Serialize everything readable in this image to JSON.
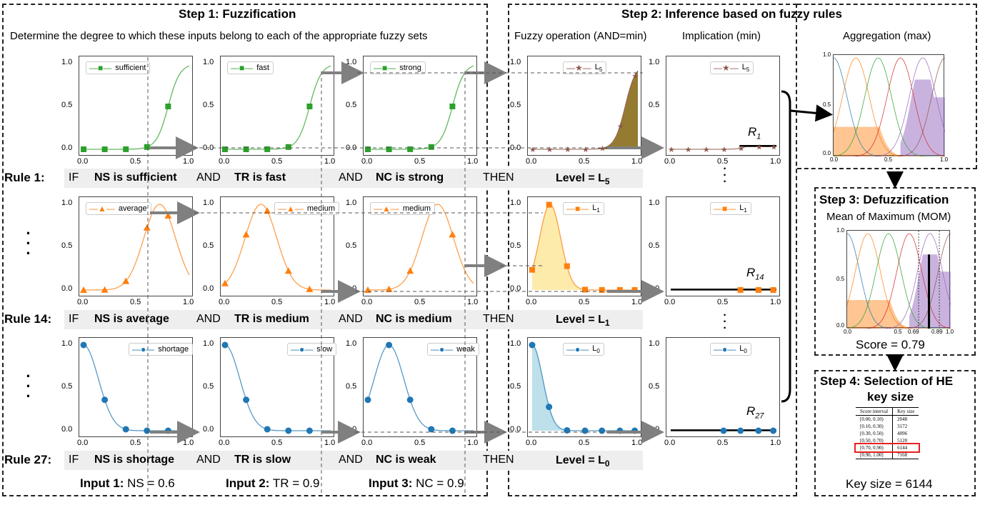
{
  "step1": {
    "title": "Step 1: Fuzzification",
    "subtitle": "Determine the degree to which these inputs belong to each of the appropriate fuzzy sets"
  },
  "step2": {
    "title": "Step 2:  Inference based on fuzzy rules",
    "col1": "Fuzzy operation (AND=min)",
    "col2": "Implication (min)",
    "col3": "Aggregation (max)"
  },
  "step3": {
    "title": "Step 3: Defuzzification",
    "subtitle": "Mean of Maximum (MOM)",
    "score": "Score = 0.79",
    "tick_069": "0.69",
    "tick_089": "0.89"
  },
  "step4": {
    "title_line1": "Step 4: Selection of HE",
    "title_line2": "key size",
    "result": "Key size = 6144",
    "table": {
      "headers": [
        "Score interval",
        "Key size"
      ],
      "rows": [
        [
          "[0.00, 0.10)",
          "2048"
        ],
        [
          "[0.10, 0.30)",
          "3172"
        ],
        [
          "[0.30, 0.50)",
          "4096"
        ],
        [
          "[0.50, 0.70)",
          "5120"
        ],
        [
          "[0.70, 0.90)",
          "6144"
        ],
        [
          "[0.90, 1.00]",
          "7168"
        ]
      ],
      "highlighted_row": 4,
      "highlight_color": "#e8201f"
    }
  },
  "rules": [
    {
      "label": "Rule 1:",
      "if": "IF",
      "c1": "NS is sufficient",
      "and1": "AND",
      "c2": "TR is fast",
      "and2": "AND",
      "c3": "NC is strong",
      "then": "THEN",
      "level": "Level = L",
      "level_sub": "5",
      "rname": "R",
      "rname_sub": "1"
    },
    {
      "label": "Rule 14:",
      "if": "IF",
      "c1": "NS is average",
      "and1": "AND",
      "c2": "TR is medium",
      "and2": "AND",
      "c3": "NC is medium",
      "then": "THEN",
      "level": "Level = L",
      "level_sub": "1",
      "rname": "R",
      "rname_sub": "14"
    },
    {
      "label": "Rule 27:",
      "if": "IF",
      "c1": "NS is shortage",
      "and1": "AND",
      "c2": "TR is slow",
      "and2": "AND",
      "c3": "NC is weak",
      "then": "THEN",
      "level": "Level = L",
      "level_sub": "0",
      "rname": "R",
      "rname_sub": "27"
    }
  ],
  "inputs": [
    {
      "label": "Input 1:",
      "value": "NS = 0.6"
    },
    {
      "label": "Input 2:",
      "value": "TR = 0.9"
    },
    {
      "label": "Input 3:",
      "value": "NC = 0.9"
    }
  ],
  "legends": {
    "row1": [
      "sufficient",
      "fast",
      "strong",
      "L",
      "L"
    ],
    "row2": [
      "average",
      "medium",
      "medium",
      "L",
      "L"
    ],
    "row3": [
      "shortage",
      "slow",
      "weak",
      "L",
      "L"
    ],
    "subs": [
      "5",
      "1",
      "0"
    ]
  },
  "ticks": {
    "y": [
      "1.0",
      "0.5",
      "0.0"
    ],
    "x": [
      "0.0",
      "0.5",
      "1.0"
    ],
    "mini_y": [
      "1.0",
      "0.5",
      "0.0"
    ],
    "mini_x": [
      "0.0",
      "0.5",
      "1.0"
    ]
  },
  "colors": {
    "green": "#2ca02c",
    "orange": "#ff7f0e",
    "blue": "#1f77b4",
    "brown": "#8c564b",
    "purple": "#9467bd",
    "olive_fill": "#8a6d1b",
    "yellow_fill": "#fde9a3",
    "lightblue_fill": "#add8e6"
  }
}
